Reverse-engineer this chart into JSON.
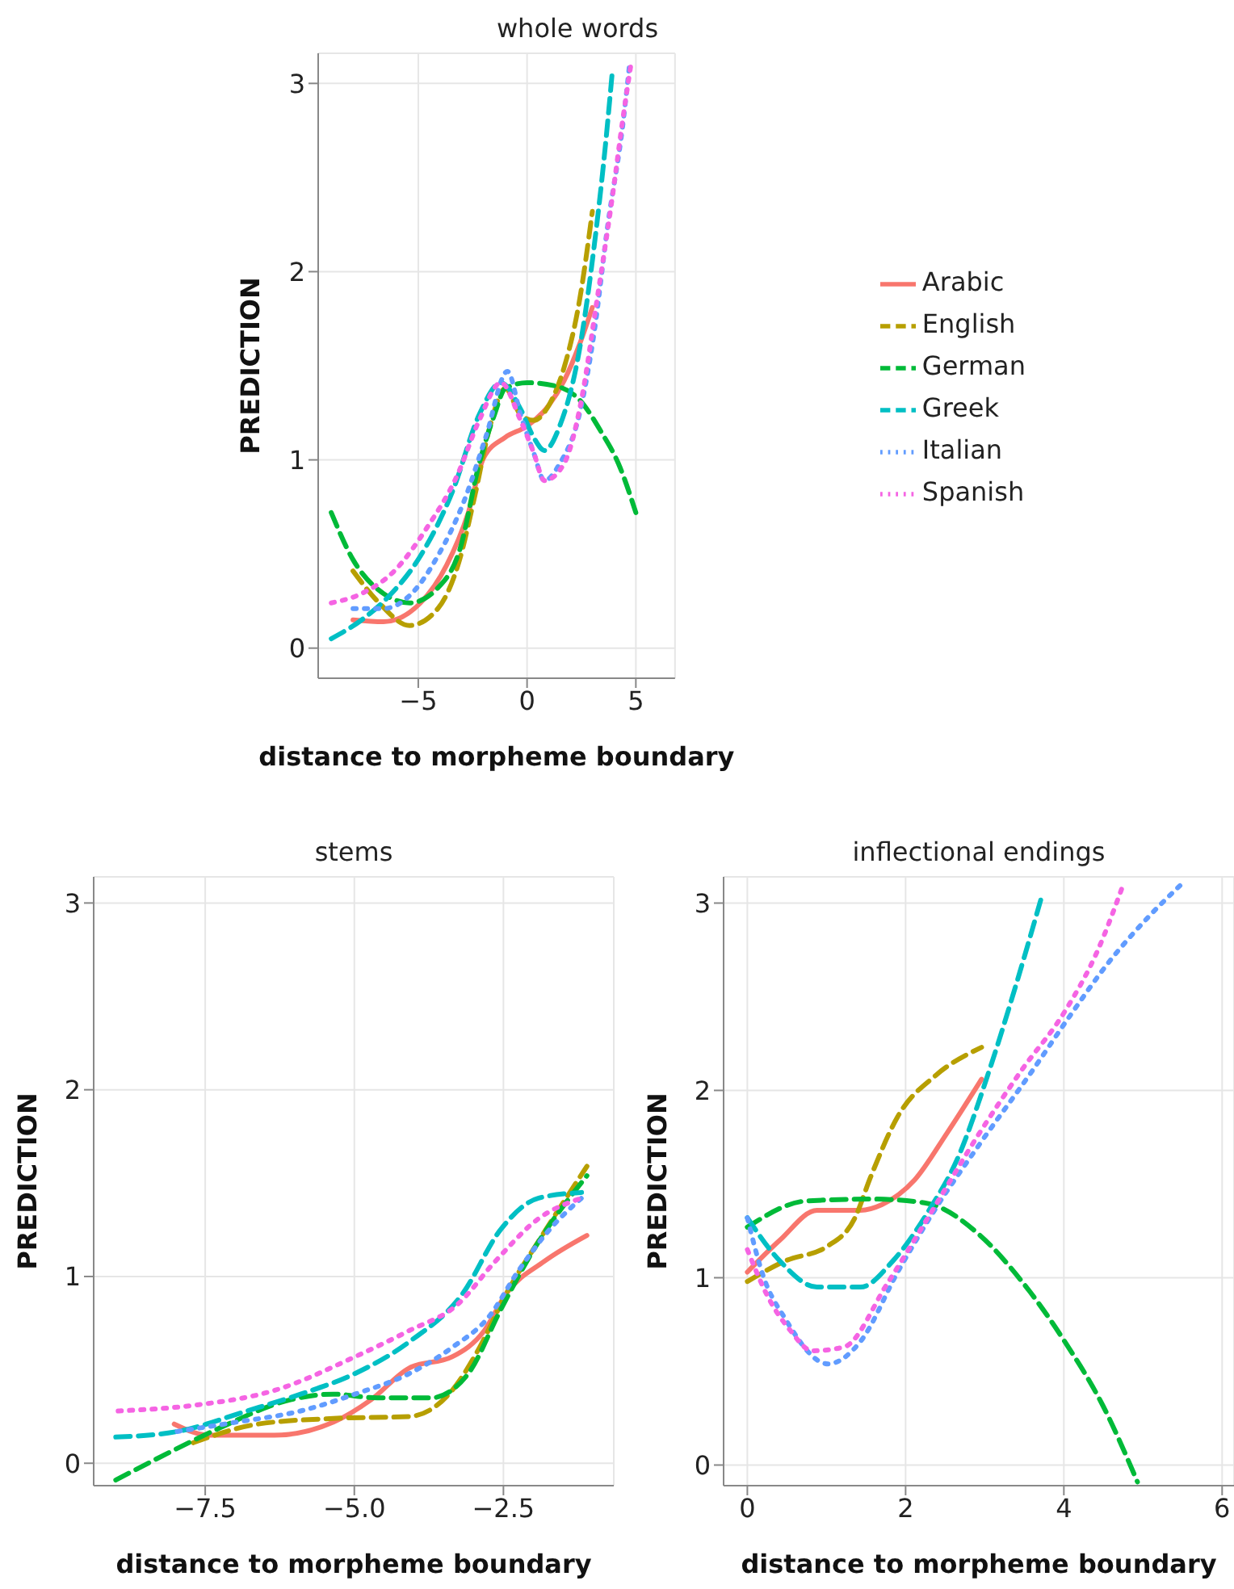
{
  "chart_data": [
    {
      "type": "line",
      "title": "whole words",
      "xlabel": "distance to morpheme boundary",
      "ylabel": "PREDICTION",
      "xlim": [
        -9.6,
        6.8
      ],
      "ylim": [
        -0.16,
        3.16
      ],
      "xticks": [
        {
          "value": -5,
          "label": "−5"
        },
        0,
        5
      ],
      "yticks": [
        0,
        1,
        2,
        3
      ],
      "grid": true,
      "legend": "right",
      "series": [
        {
          "name": "Arabic",
          "color": "#f8766d",
          "line_style": "solid",
          "x": [
            -8.0,
            -6.6,
            -4.9,
            -3.7,
            -2.7,
            -2.0,
            -1.0,
            0,
            1.0,
            1.7,
            2.4,
            3.0
          ],
          "values": [
            0.15,
            0.14,
            0.24,
            0.44,
            0.72,
            1.01,
            1.12,
            1.18,
            1.29,
            1.42,
            1.61,
            1.81
          ]
        },
        {
          "name": "English",
          "color": "#b79f00",
          "line_style": "dashed",
          "x": [
            -8,
            -6.8,
            -5.4,
            -4.1,
            -3.1,
            -2.4,
            -1.7,
            -1.0,
            -0.3,
            0.3,
            1.0,
            1.7,
            2.4,
            3.0
          ],
          "values": [
            0.41,
            0.24,
            0.12,
            0.21,
            0.47,
            0.81,
            1.18,
            1.38,
            1.24,
            1.21,
            1.29,
            1.49,
            1.84,
            2.32
          ]
        },
        {
          "name": "German",
          "color": "#00ba38",
          "line_style": "dashed",
          "x": [
            -9.0,
            -8,
            -6.6,
            -5.4,
            -4.1,
            -3.1,
            -2.2,
            -1.5,
            -1.0,
            0,
            1.4,
            2.4,
            3.4,
            4.2,
            5.0
          ],
          "values": [
            0.72,
            0.47,
            0.29,
            0.24,
            0.32,
            0.52,
            0.98,
            1.24,
            1.38,
            1.41,
            1.39,
            1.32,
            1.15,
            0.98,
            0.72
          ]
        },
        {
          "name": "Greek",
          "color": "#00bfc4",
          "line_style": "dashed",
          "x": [
            -9,
            -7.6,
            -6.4,
            -4.9,
            -3.4,
            -2.2,
            -1.2,
            -0.3,
            0.3,
            0.8,
            1.5,
            2.4,
            3.1,
            3.6,
            3.9
          ],
          "values": [
            0.05,
            0.15,
            0.27,
            0.49,
            0.84,
            1.24,
            1.41,
            1.27,
            1.12,
            1.05,
            1.18,
            1.58,
            2.15,
            2.67,
            3.04
          ]
        },
        {
          "name": "Italian",
          "color": "#619cff",
          "line_style": "dotted",
          "x": [
            -8,
            -6.6,
            -5.3,
            -4.1,
            -2.9,
            -1.9,
            -0.9,
            -0.3,
            0.3,
            0.8,
            1.5,
            2.4,
            3.1,
            3.7,
            4.4,
            4.7
          ],
          "values": [
            0.21,
            0.21,
            0.29,
            0.49,
            0.78,
            1.12,
            1.47,
            1.24,
            1.04,
            0.89,
            0.98,
            1.24,
            1.69,
            2.24,
            2.78,
            3.09
          ]
        },
        {
          "name": "Spanish",
          "color": "#f564e3",
          "line_style": "dotted",
          "x": [
            -9,
            -7.6,
            -6.1,
            -4.6,
            -3.2,
            -2.2,
            -1.2,
            -0.3,
            0.3,
            0.8,
            1.7,
            2.5,
            3.2,
            3.9,
            4.4,
            4.8
          ],
          "values": [
            0.24,
            0.29,
            0.41,
            0.64,
            0.92,
            1.21,
            1.41,
            1.21,
            1.04,
            0.89,
            0.98,
            1.32,
            1.84,
            2.38,
            2.81,
            3.12
          ]
        }
      ]
    },
    {
      "type": "line",
      "title": "stems",
      "xlabel": "distance to morpheme boundary",
      "ylabel": "PREDICTION",
      "xlim": [
        -9.37,
        -0.65
      ],
      "ylim": [
        -0.12,
        3.14
      ],
      "xticks": [
        {
          "value": -7.5,
          "label": "−7.5"
        },
        {
          "value": -5,
          "label": "−5.0"
        },
        {
          "value": -2.5,
          "label": "−2.5"
        }
      ],
      "yticks": [
        0,
        1,
        2,
        3
      ],
      "grid": true,
      "series": [
        {
          "color": "#f8766d",
          "line_style": "solid",
          "x": [
            -8.02,
            -7.43,
            -6.34,
            -5.35,
            -4.72,
            -4.08,
            -3.36,
            -2.82,
            -2.45,
            -1.82,
            -1.1
          ],
          "values": [
            0.21,
            0.15,
            0.15,
            0.22,
            0.34,
            0.51,
            0.57,
            0.71,
            0.91,
            1.08,
            1.22
          ]
        },
        {
          "color": "#b79f00",
          "line_style": "dashed",
          "x": [
            -7.7,
            -6.61,
            -5.35,
            -4.08,
            -3.36,
            -2.9,
            -2.45,
            -1.91,
            -1.1
          ],
          "values": [
            0.11,
            0.21,
            0.24,
            0.25,
            0.39,
            0.62,
            0.91,
            1.19,
            1.59
          ]
        },
        {
          "color": "#00ba38",
          "line_style": "dashed",
          "x": [
            -9.0,
            -8.15,
            -7.25,
            -6.07,
            -5.35,
            -4.62,
            -3.72,
            -3.09,
            -2.55,
            -2.0,
            -1.1
          ],
          "values": [
            -0.09,
            0.05,
            0.19,
            0.34,
            0.37,
            0.35,
            0.35,
            0.48,
            0.82,
            1.14,
            1.54
          ]
        },
        {
          "color": "#00bfc4",
          "line_style": "dashed",
          "x": [
            -9.0,
            -7.97,
            -6.8,
            -5.9,
            -4.99,
            -4.08,
            -3.18,
            -2.55,
            -1.91,
            -1.19
          ],
          "values": [
            0.14,
            0.17,
            0.28,
            0.37,
            0.48,
            0.65,
            0.91,
            1.25,
            1.42,
            1.45
          ]
        },
        {
          "color": "#619cff",
          "line_style": "dotted",
          "x": [
            -7.97,
            -6.98,
            -5.9,
            -4.99,
            -4.08,
            -3.36,
            -2.73,
            -2.27,
            -1.73,
            -1.19
          ],
          "values": [
            0.17,
            0.22,
            0.28,
            0.37,
            0.48,
            0.62,
            0.79,
            1.02,
            1.25,
            1.42
          ]
        },
        {
          "color": "#f564e3",
          "line_style": "dotted",
          "x": [
            -8.96,
            -7.7,
            -6.34,
            -4.99,
            -4.08,
            -3.27,
            -2.64,
            -1.91,
            -1.19
          ],
          "values": [
            0.28,
            0.31,
            0.39,
            0.57,
            0.71,
            0.85,
            1.08,
            1.31,
            1.42
          ]
        }
      ]
    },
    {
      "type": "line",
      "title": "inflectional endings",
      "xlabel": "distance to morpheme boundary",
      "ylabel": "PREDICTION",
      "xlim": [
        -0.3,
        6.15
      ],
      "ylim": [
        -0.11,
        3.14
      ],
      "xticks": [
        0,
        2,
        4,
        6
      ],
      "yticks": [
        0,
        1,
        2,
        3
      ],
      "grid": true,
      "series": [
        {
          "color": "#f8766d",
          "line_style": "solid",
          "x": [
            0,
            0.41,
            0.88,
            1.43,
            1.7,
            2.11,
            2.52,
            2.96
          ],
          "values": [
            1.03,
            1.2,
            1.36,
            1.36,
            1.39,
            1.52,
            1.77,
            2.06
          ]
        },
        {
          "color": "#b79f00",
          "line_style": "dashed",
          "x": [
            0,
            0.48,
            1.02,
            1.36,
            1.56,
            1.9,
            2.38,
            2.96
          ],
          "values": [
            0.98,
            1.09,
            1.17,
            1.32,
            1.54,
            1.86,
            2.08,
            2.23
          ]
        },
        {
          "color": "#00ba38",
          "line_style": "dashed",
          "x": [
            0,
            0.75,
            1.56,
            2.24,
            2.93,
            3.47,
            4.01,
            4.49,
            4.93
          ],
          "values": [
            1.27,
            1.41,
            1.42,
            1.4,
            1.23,
            0.98,
            0.66,
            0.32,
            -0.09
          ]
        },
        {
          "color": "#00bfc4",
          "line_style": "dashed",
          "x": [
            0,
            0.41,
            0.88,
            1.43,
            1.84,
            2.31,
            2.65,
            3.06,
            3.4,
            3.71
          ],
          "values": [
            1.32,
            1.09,
            0.95,
            0.95,
            1.09,
            1.37,
            1.63,
            2.11,
            2.57,
            3.02
          ]
        },
        {
          "color": "#619cff",
          "line_style": "dotted",
          "x": [
            0,
            0.2,
            0.48,
            1.02,
            1.43,
            1.9,
            2.38,
            2.93,
            3.61,
            4.08,
            4.56,
            5.1,
            5.51
          ],
          "values": [
            1.32,
            1.01,
            0.78,
            0.54,
            0.66,
            1.03,
            1.37,
            1.71,
            2.11,
            2.4,
            2.68,
            2.94,
            3.11
          ]
        },
        {
          "color": "#f564e3",
          "line_style": "dotted",
          "x": [
            0,
            0.27,
            0.54,
            0.82,
            1.22,
            1.77,
            2.31,
            2.93,
            3.47,
            4.01,
            4.42,
            4.76
          ],
          "values": [
            1.15,
            0.89,
            0.72,
            0.61,
            0.63,
            0.97,
            1.34,
            1.77,
            2.11,
            2.42,
            2.74,
            3.11
          ]
        }
      ]
    }
  ]
}
